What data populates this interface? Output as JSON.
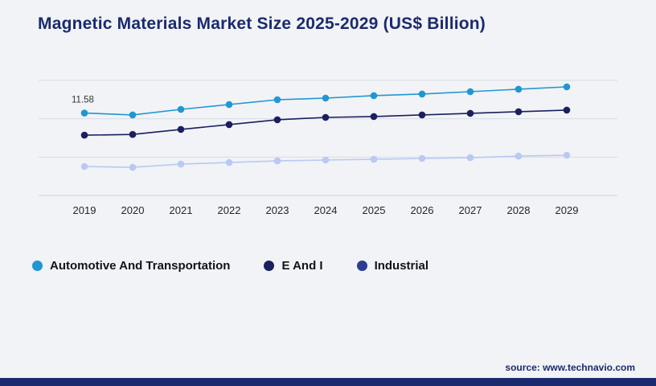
{
  "page": {
    "background_color": "#f1f3f6",
    "footer_bar_color": "#1b2a6e"
  },
  "title": "Magnetic Materials Market Size 2025-2029 (US$ Billion)",
  "source": "source: www.technavio.com",
  "chart_data": {
    "type": "line",
    "x": [
      "2019",
      "2020",
      "2021",
      "2022",
      "2023",
      "2024",
      "2025",
      "2026",
      "2027",
      "2028",
      "2029"
    ],
    "series": [
      {
        "name": "Automotive And Transportation",
        "color": "#2196d3",
        "values": [
          11.58,
          11.5,
          11.74,
          11.95,
          12.16,
          12.23,
          12.34,
          12.41,
          12.51,
          12.62,
          12.72
        ]
      },
      {
        "name": "E And I",
        "color": "#1a1f5e",
        "values": [
          10.62,
          10.65,
          10.87,
          11.08,
          11.29,
          11.39,
          11.43,
          11.5,
          11.57,
          11.64,
          11.71
        ]
      },
      {
        "name": "Industrial",
        "color": "#b9c9f2",
        "legend_color": "#2c3e92",
        "values": [
          9.26,
          9.22,
          9.36,
          9.43,
          9.5,
          9.54,
          9.57,
          9.61,
          9.64,
          9.71,
          9.75
        ]
      }
    ],
    "annotation": {
      "series_index": 0,
      "point_index": 0,
      "text": "11.58"
    },
    "ylim": [
      8,
      13
    ],
    "gridline_count": 4,
    "grid": true,
    "legend_position": "bottom",
    "xlabel": "",
    "ylabel": ""
  }
}
